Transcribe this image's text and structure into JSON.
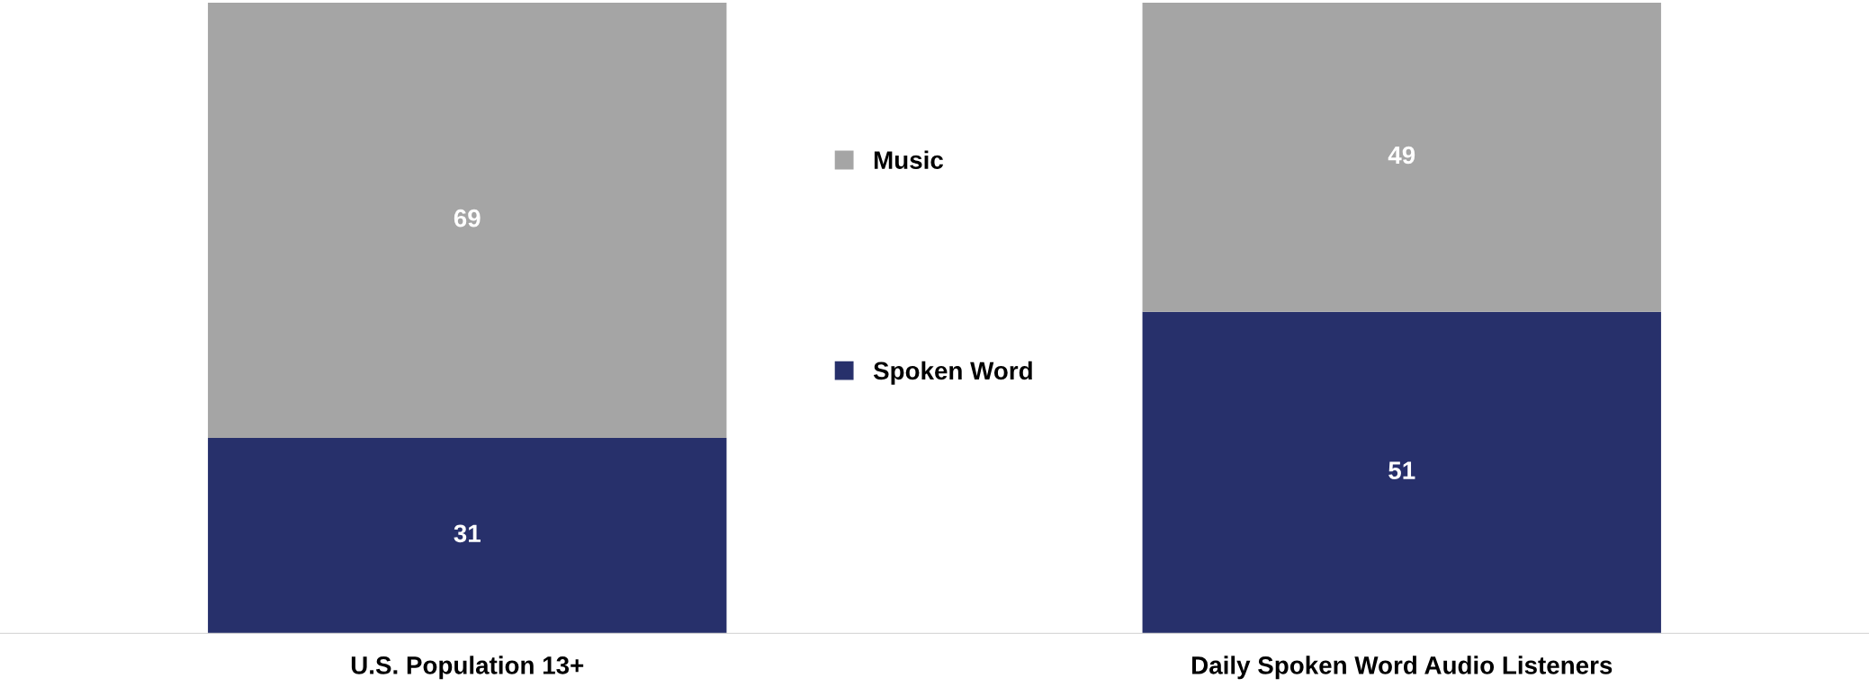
{
  "chart_data": {
    "type": "bar",
    "stacked": true,
    "data_labels": true,
    "legend": "center",
    "grid": false,
    "categories": [
      "U.S. Population 13+",
      "Daily Spoken Word Audio Listeners"
    ],
    "series": [
      {
        "name": "Spoken Word",
        "color": "#27306b",
        "values": [
          31,
          51
        ]
      },
      {
        "name": "Music",
        "color": "#a5a5a5",
        "values": [
          69,
          49
        ]
      }
    ]
  }
}
